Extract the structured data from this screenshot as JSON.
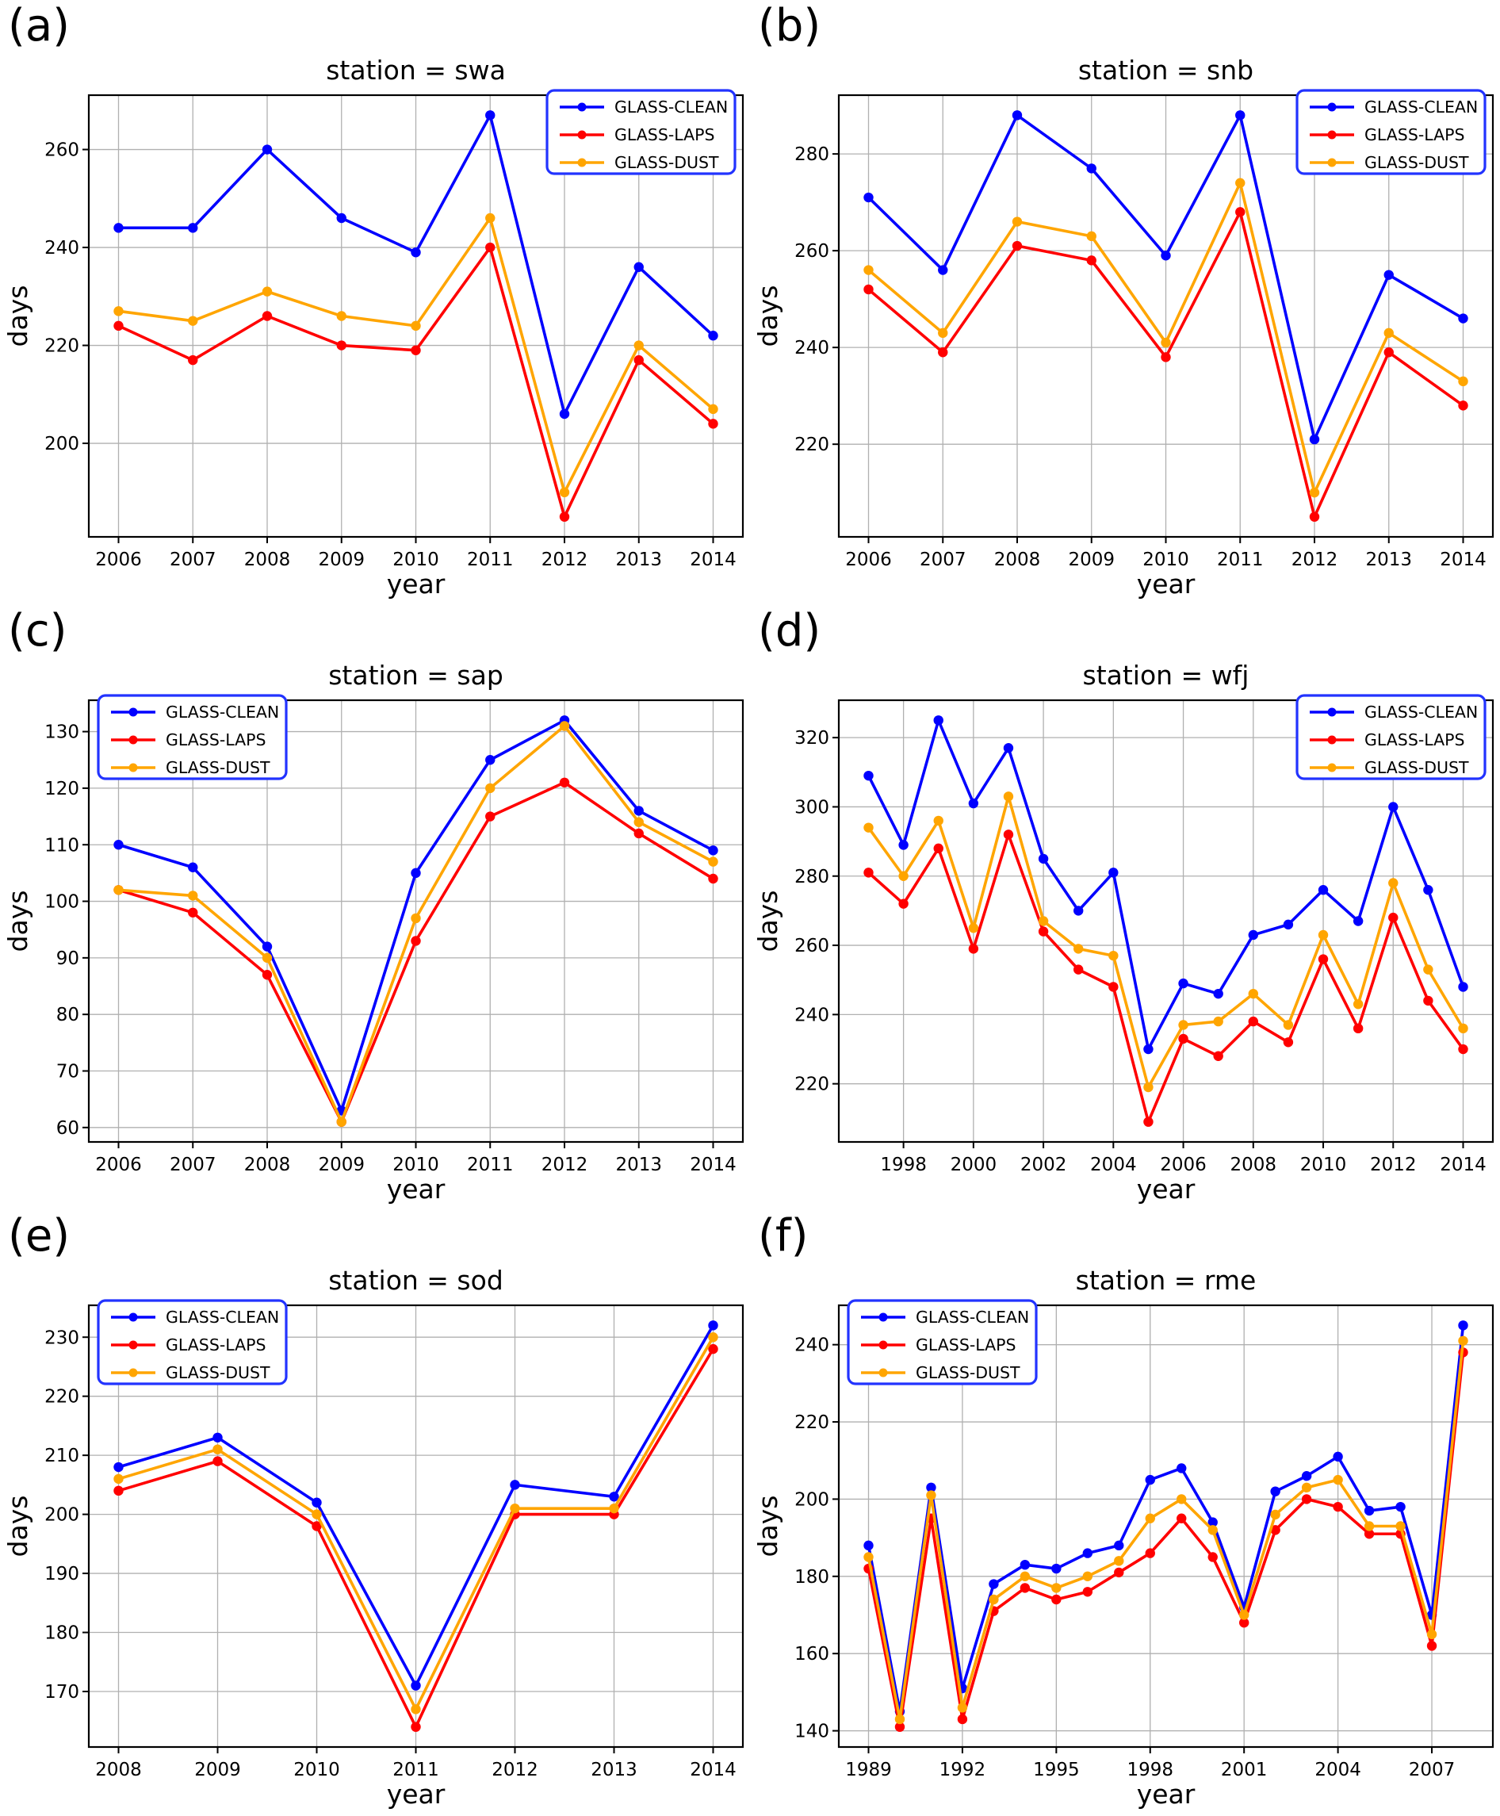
{
  "figure": {
    "background": "#ffffff",
    "text_color": "#000000",
    "grid_color": "#b0b0b0",
    "spine_color": "#000000",
    "legend_border_color": "#2233ff",
    "series_names": [
      "GLASS-CLEAN",
      "GLASS-LAPS",
      "GLASS-DUST"
    ],
    "series_colors": [
      "#0000ff",
      "#ff0000",
      "#ffa500"
    ]
  },
  "chart_data": [
    {
      "type": "line",
      "panel_label": "(a)",
      "title": "station = swa",
      "xlabel": "year",
      "ylabel": "days",
      "legend_position": "top-right",
      "legend_entries": [
        "GLASS-CLEAN",
        "GLASS-LAPS",
        "GLASS-DUST"
      ],
      "grid": true,
      "x": [
        2006,
        2007,
        2008,
        2009,
        2010,
        2011,
        2012,
        2013,
        2014
      ],
      "xticks": [
        2006,
        2007,
        2008,
        2009,
        2010,
        2011,
        2012,
        2013,
        2014
      ],
      "yticks": [
        200,
        220,
        240,
        260
      ],
      "series": [
        {
          "name": "GLASS-CLEAN",
          "color": "#0000ff",
          "values": [
            244,
            244,
            260,
            246,
            239,
            267,
            206,
            236,
            222
          ]
        },
        {
          "name": "GLASS-LAPS",
          "color": "#ff0000",
          "values": [
            224,
            217,
            226,
            220,
            219,
            240,
            185,
            217,
            204
          ]
        },
        {
          "name": "GLASS-DUST",
          "color": "#ffa500",
          "values": [
            227,
            225,
            231,
            226,
            224,
            246,
            190,
            220,
            207
          ]
        }
      ]
    },
    {
      "type": "line",
      "panel_label": "(b)",
      "title": "station = snb",
      "xlabel": "year",
      "ylabel": "days",
      "legend_position": "top-right",
      "legend_entries": [
        "GLASS-CLEAN",
        "GLASS-LAPS",
        "GLASS-DUST"
      ],
      "grid": true,
      "x": [
        2006,
        2007,
        2008,
        2009,
        2010,
        2011,
        2012,
        2013,
        2014
      ],
      "xticks": [
        2006,
        2007,
        2008,
        2009,
        2010,
        2011,
        2012,
        2013,
        2014
      ],
      "yticks": [
        220,
        240,
        260,
        280
      ],
      "series": [
        {
          "name": "GLASS-CLEAN",
          "color": "#0000ff",
          "values": [
            271,
            256,
            288,
            277,
            259,
            288,
            221,
            255,
            246
          ]
        },
        {
          "name": "GLASS-LAPS",
          "color": "#ff0000",
          "values": [
            252,
            239,
            261,
            258,
            238,
            268,
            205,
            239,
            228
          ]
        },
        {
          "name": "GLASS-DUST",
          "color": "#ffa500",
          "values": [
            256,
            243,
            266,
            263,
            241,
            274,
            210,
            243,
            233
          ]
        }
      ]
    },
    {
      "type": "line",
      "panel_label": "(c)",
      "title": "station = sap",
      "xlabel": "year",
      "ylabel": "days",
      "legend_position": "top-left",
      "legend_entries": [
        "GLASS-CLEAN",
        "GLASS-LAPS",
        "GLASS-DUST"
      ],
      "grid": true,
      "x": [
        2006,
        2007,
        2008,
        2009,
        2010,
        2011,
        2012,
        2013,
        2014
      ],
      "xticks": [
        2006,
        2007,
        2008,
        2009,
        2010,
        2011,
        2012,
        2013,
        2014
      ],
      "yticks": [
        60,
        70,
        80,
        90,
        100,
        110,
        120,
        130
      ],
      "series": [
        {
          "name": "GLASS-CLEAN",
          "color": "#0000ff",
          "values": [
            110,
            106,
            92,
            63,
            105,
            125,
            132,
            116,
            109
          ]
        },
        {
          "name": "GLASS-LAPS",
          "color": "#ff0000",
          "values": [
            102,
            98,
            87,
            61,
            93,
            115,
            121,
            112,
            104
          ]
        },
        {
          "name": "GLASS-DUST",
          "color": "#ffa500",
          "values": [
            102,
            101,
            90,
            61,
            97,
            120,
            131,
            114,
            107
          ]
        }
      ]
    },
    {
      "type": "line",
      "panel_label": "(d)",
      "title": "station = wfj",
      "xlabel": "year",
      "ylabel": "days",
      "legend_position": "top-right",
      "legend_entries": [
        "GLASS-CLEAN",
        "GLASS-LAPS",
        "GLASS-DUST"
      ],
      "grid": true,
      "x": [
        1997,
        1998,
        1999,
        2000,
        2001,
        2002,
        2003,
        2004,
        2005,
        2006,
        2007,
        2008,
        2009,
        2010,
        2011,
        2012,
        2013,
        2014
      ],
      "xticks": [
        1998,
        2000,
        2002,
        2004,
        2006,
        2008,
        2010,
        2012,
        2014
      ],
      "yticks": [
        220,
        240,
        260,
        280,
        300,
        320
      ],
      "series": [
        {
          "name": "GLASS-CLEAN",
          "color": "#0000ff",
          "values": [
            309,
            289,
            325,
            301,
            317,
            285,
            270,
            281,
            230,
            249,
            246,
            263,
            266,
            276,
            267,
            300,
            276,
            248
          ]
        },
        {
          "name": "GLASS-LAPS",
          "color": "#ff0000",
          "values": [
            281,
            272,
            288,
            259,
            292,
            264,
            253,
            248,
            209,
            233,
            228,
            238,
            232,
            256,
            236,
            268,
            244,
            230
          ]
        },
        {
          "name": "GLASS-DUST",
          "color": "#ffa500",
          "values": [
            294,
            280,
            296,
            265,
            303,
            267,
            259,
            257,
            219,
            237,
            238,
            246,
            237,
            263,
            243,
            278,
            253,
            236
          ]
        }
      ]
    },
    {
      "type": "line",
      "panel_label": "(e)",
      "title": "station = sod",
      "xlabel": "year",
      "ylabel": "days",
      "legend_position": "top-left",
      "legend_entries": [
        "GLASS-CLEAN",
        "GLASS-LAPS",
        "GLASS-DUST"
      ],
      "grid": true,
      "x": [
        2008,
        2009,
        2010,
        2011,
        2012,
        2013,
        2014
      ],
      "xticks": [
        2008,
        2009,
        2010,
        2011,
        2012,
        2013,
        2014
      ],
      "yticks": [
        170,
        180,
        190,
        200,
        210,
        220,
        230
      ],
      "series": [
        {
          "name": "GLASS-CLEAN",
          "color": "#0000ff",
          "values": [
            208,
            213,
            202,
            171,
            205,
            203,
            232
          ]
        },
        {
          "name": "GLASS-LAPS",
          "color": "#ff0000",
          "values": [
            204,
            209,
            198,
            164,
            200,
            200,
            228
          ]
        },
        {
          "name": "GLASS-DUST",
          "color": "#ffa500",
          "values": [
            206,
            211,
            200,
            167,
            201,
            201,
            230
          ]
        }
      ]
    },
    {
      "type": "line",
      "panel_label": "(f)",
      "title": "station = rme",
      "xlabel": "year",
      "ylabel": "days",
      "legend_position": "top-left",
      "legend_entries": [
        "GLASS-CLEAN",
        "GLASS-LAPS",
        "GLASS-DUST"
      ],
      "grid": true,
      "x": [
        1989,
        1990,
        1991,
        1992,
        1993,
        1994,
        1995,
        1996,
        1997,
        1998,
        1999,
        2000,
        2001,
        2002,
        2003,
        2004,
        2005,
        2006,
        2007,
        2008
      ],
      "xticks": [
        1989,
        1992,
        1995,
        1998,
        2001,
        2004,
        2007
      ],
      "yticks": [
        140,
        160,
        180,
        200,
        220,
        240
      ],
      "series": [
        {
          "name": "GLASS-CLEAN",
          "color": "#0000ff",
          "values": [
            188,
            145,
            203,
            151,
            178,
            183,
            182,
            186,
            188,
            205,
            208,
            194,
            172,
            202,
            206,
            211,
            197,
            198,
            170,
            245
          ]
        },
        {
          "name": "GLASS-LAPS",
          "color": "#ff0000",
          "values": [
            182,
            141,
            195,
            143,
            171,
            177,
            174,
            176,
            181,
            186,
            195,
            185,
            168,
            192,
            200,
            198,
            191,
            191,
            162,
            238
          ]
        },
        {
          "name": "GLASS-DUST",
          "color": "#ffa500",
          "values": [
            185,
            143,
            201,
            146,
            174,
            180,
            177,
            180,
            184,
            195,
            200,
            192,
            170,
            196,
            203,
            205,
            193,
            193,
            165,
            241
          ]
        }
      ]
    }
  ]
}
